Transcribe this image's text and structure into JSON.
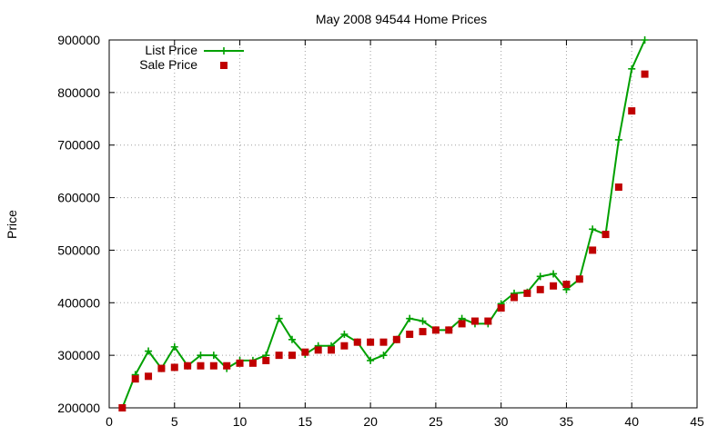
{
  "chart_data": {
    "type": "line",
    "title": "May 2008 94544 Home Prices",
    "xlabel": "",
    "ylabel": "Price",
    "xlim": [
      0,
      45
    ],
    "ylim": [
      200000,
      900000
    ],
    "xticks": [
      0,
      5,
      10,
      15,
      20,
      25,
      30,
      35,
      40,
      45
    ],
    "yticks": [
      200000,
      300000,
      400000,
      500000,
      600000,
      700000,
      800000,
      900000
    ],
    "grid": true,
    "legend_position": "top-left",
    "series": [
      {
        "name": "List Price",
        "style": "lines+crosses",
        "color": "#00a000",
        "x": [
          1,
          2,
          3,
          4,
          5,
          6,
          7,
          8,
          9,
          10,
          11,
          12,
          13,
          14,
          15,
          16,
          17,
          18,
          19,
          20,
          21,
          22,
          23,
          24,
          25,
          26,
          27,
          28,
          29,
          30,
          31,
          32,
          33,
          34,
          35,
          36,
          37,
          38,
          39,
          40,
          41
        ],
        "values": [
          200000,
          263000,
          308000,
          275000,
          316000,
          280000,
          300000,
          300000,
          275000,
          290000,
          290000,
          300000,
          370000,
          330000,
          302000,
          318000,
          318000,
          340000,
          325000,
          290000,
          300000,
          330000,
          370000,
          365000,
          348000,
          348000,
          370000,
          360000,
          360000,
          398000,
          418000,
          420000,
          450000,
          455000,
          425000,
          445000,
          540000,
          530000,
          710000,
          845000,
          900000
        ]
      },
      {
        "name": "Sale Price",
        "style": "points",
        "color": "#c00000",
        "x": [
          1,
          2,
          3,
          4,
          5,
          6,
          7,
          8,
          9,
          10,
          11,
          12,
          13,
          14,
          15,
          16,
          17,
          18,
          19,
          20,
          21,
          22,
          23,
          24,
          25,
          26,
          27,
          28,
          29,
          30,
          31,
          32,
          33,
          34,
          35,
          36,
          37,
          38,
          39,
          40,
          41
        ],
        "values": [
          200000,
          255000,
          260000,
          275000,
          277000,
          280000,
          280000,
          280000,
          280000,
          285000,
          285000,
          290000,
          300000,
          300000,
          306000,
          310000,
          310000,
          318000,
          325000,
          325000,
          325000,
          330000,
          340000,
          345000,
          348000,
          348000,
          360000,
          365000,
          365000,
          390000,
          410000,
          418000,
          425000,
          432000,
          435000,
          445000,
          500000,
          530000,
          620000,
          765000,
          835000
        ]
      }
    ]
  }
}
